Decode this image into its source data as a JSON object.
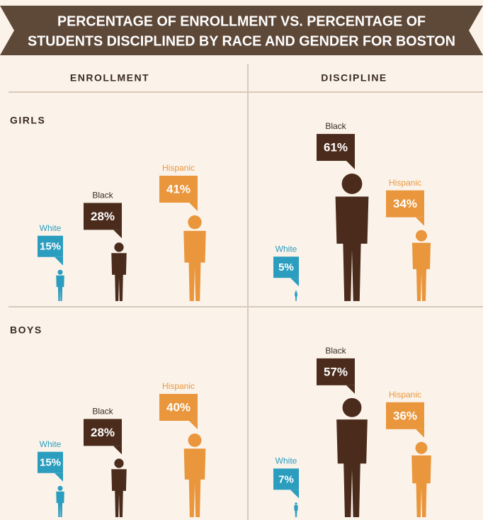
{
  "title": [
    "PERCENTAGE OF ENROLLMENT VS. PERCENTAGE OF",
    "STUDENTS DISCIPLINED BY RACE AND GENDER FOR BOSTON"
  ],
  "columns": [
    "ENROLLMENT",
    "DISCIPLINE"
  ],
  "rows": [
    "GIRLS",
    "BOYS"
  ],
  "chart_data": [
    {
      "type": "pictogram",
      "categories": [
        "White",
        "Black",
        "Hispanic"
      ],
      "values": [
        15,
        28,
        41
      ],
      "value_labels": [
        "15%",
        "28%",
        "41%"
      ],
      "colors": [
        "#2b9dbf",
        "#4b2c1c",
        "#e9963c"
      ]
    },
    {
      "type": "pictogram",
      "categories": [
        "White",
        "Black",
        "Hispanic"
      ],
      "values": [
        5,
        61,
        34
      ],
      "value_labels": [
        "5%",
        "61%",
        "34%"
      ],
      "colors": [
        "#2b9dbf",
        "#4b2c1c",
        "#e9963c"
      ]
    },
    {
      "type": "pictogram",
      "categories": [
        "White",
        "Black",
        "Hispanic"
      ],
      "values": [
        15,
        28,
        40
      ],
      "value_labels": [
        "15%",
        "28%",
        "40%"
      ],
      "colors": [
        "#2b9dbf",
        "#4b2c1c",
        "#e9963c"
      ]
    },
    {
      "type": "pictogram",
      "categories": [
        "White",
        "Black",
        "Hispanic"
      ],
      "values": [
        7,
        57,
        36
      ],
      "value_labels": [
        "7%",
        "57%",
        "36%"
      ],
      "colors": [
        "#2b9dbf",
        "#4b2c1c",
        "#e9963c"
      ]
    }
  ]
}
